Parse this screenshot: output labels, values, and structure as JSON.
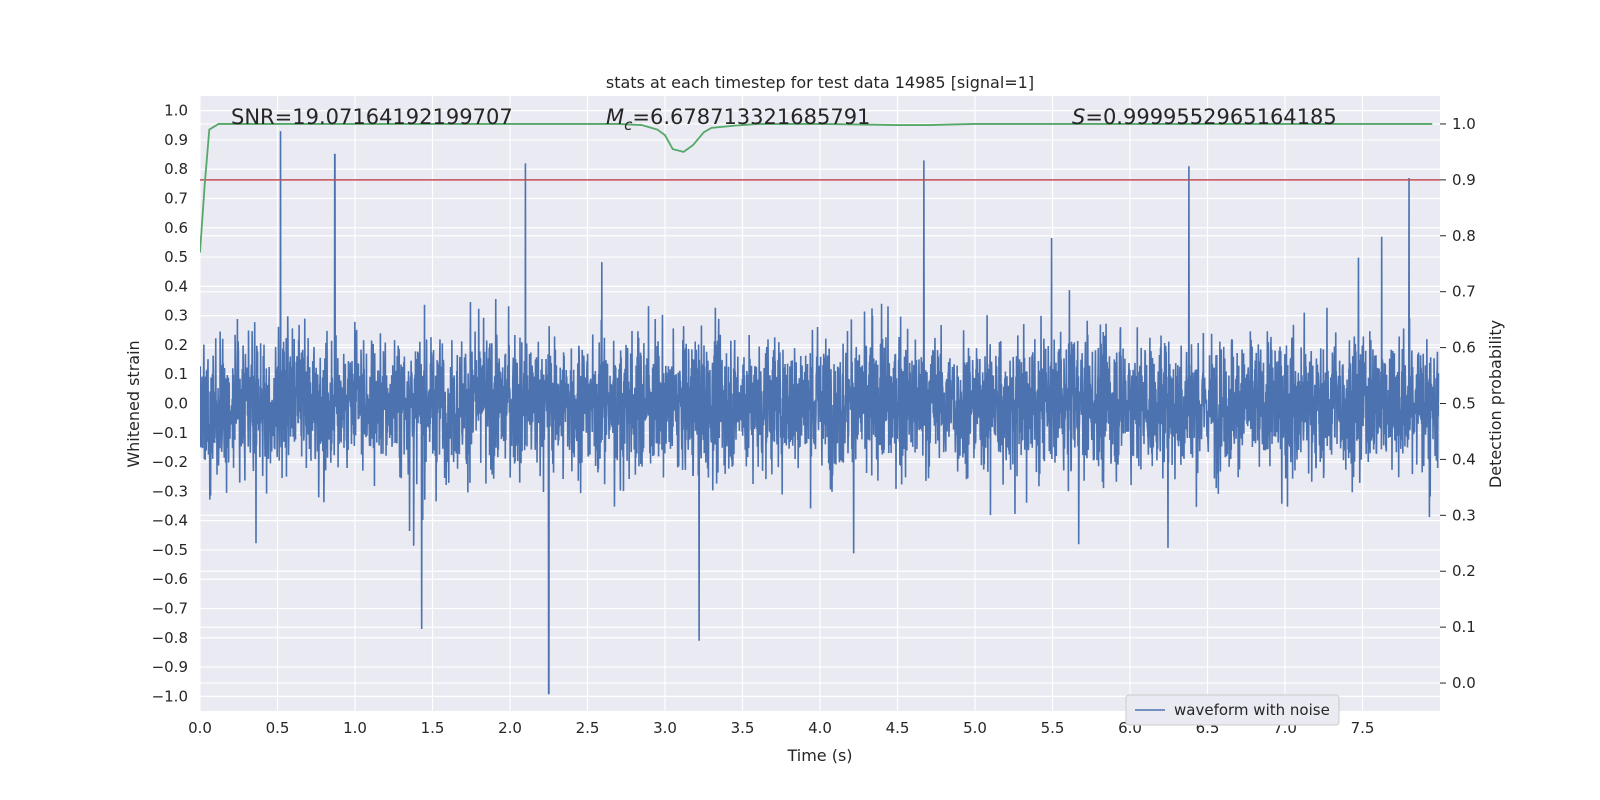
{
  "chart_data": {
    "type": "line",
    "title": "stats at each timestep for test data 14985 [signal=1]",
    "xlabel": "Time (s)",
    "ylabel": "Whitened strain",
    "y2label": "Detection probability",
    "xlim": [
      0.0,
      8.0
    ],
    "ylim": [
      -1.05,
      1.05
    ],
    "y2lim": [
      -0.05,
      1.05
    ],
    "xticks": [
      0.0,
      0.5,
      1.0,
      1.5,
      2.0,
      2.5,
      3.0,
      3.5,
      4.0,
      4.5,
      5.0,
      5.5,
      6.0,
      6.5,
      7.0,
      7.5
    ],
    "xtick_labels": [
      "0.0",
      "0.5",
      "1.0",
      "1.5",
      "2.0",
      "2.5",
      "3.0",
      "3.5",
      "4.0",
      "4.5",
      "5.0",
      "5.5",
      "6.0",
      "6.5",
      "7.0",
      "7.5"
    ],
    "yticks": [
      1.0,
      0.9,
      0.8,
      0.7,
      0.6,
      0.5,
      0.4,
      0.3,
      0.2,
      0.1,
      0.0,
      -0.1,
      -0.2,
      -0.3,
      -0.4,
      -0.5,
      -0.6,
      -0.7,
      -0.8,
      -0.9,
      -1.0
    ],
    "ytick_labels": [
      "1.0",
      "0.9",
      "0.8",
      "0.7",
      "0.6",
      "0.5",
      "0.4",
      "0.3",
      "0.2",
      "0.1",
      "0.0",
      "−0.1",
      "−0.2",
      "−0.3",
      "−0.4",
      "−0.5",
      "−0.6",
      "−0.7",
      "−0.8",
      "−0.9",
      "−1.0"
    ],
    "y2ticks": [
      1.0,
      0.9,
      0.8,
      0.7,
      0.6,
      0.5,
      0.4,
      0.3,
      0.2,
      0.1,
      0.0
    ],
    "y2tick_labels": [
      "1.0",
      "0.9",
      "0.8",
      "0.7",
      "0.6",
      "0.5",
      "0.4",
      "0.3",
      "0.2",
      "0.1",
      "0.0"
    ],
    "grid": true,
    "legend": {
      "position": "lower-right",
      "entries": [
        "waveform with noise"
      ]
    },
    "annotations": {
      "snr": "SNR=19.07164192199707",
      "mc_symbol": "M",
      "mc_sub": "c",
      "mc_value": "=6.678713321685791",
      "s_symbol": "S",
      "s_value": "=0.9999552965164185"
    },
    "threshold": {
      "axis": "y2",
      "value": 0.9,
      "color": "#c44e52"
    },
    "series": [
      {
        "name": "waveform with noise",
        "axis": "y",
        "color": "#4c72b0",
        "note": "dense noisy whitened strain, sampled ~8 s",
        "envelope_notable_peaks": [
          {
            "x": 0.52,
            "y": 0.93
          },
          {
            "x": 0.87,
            "y": 0.85
          },
          {
            "x": 2.1,
            "y": 0.82
          },
          {
            "x": 4.67,
            "y": 0.83
          },
          {
            "x": 6.38,
            "y": 0.81
          },
          {
            "x": 2.25,
            "y": -0.99
          },
          {
            "x": 1.43,
            "y": -0.77
          },
          {
            "x": 3.22,
            "y": -0.81
          },
          {
            "x": 7.8,
            "y": 0.77
          }
        ]
      },
      {
        "name": "detection probability",
        "axis": "y2",
        "color": "#55a868",
        "x": [
          0.0,
          0.03,
          0.06,
          0.12,
          0.5,
          1.0,
          2.0,
          2.7,
          2.85,
          2.95,
          3.0,
          3.05,
          3.12,
          3.18,
          3.25,
          3.3,
          3.45,
          3.6,
          4.0,
          4.5,
          4.7,
          5.0,
          6.0,
          7.0,
          7.95
        ],
        "values": [
          0.77,
          0.89,
          0.99,
          1.0,
          1.0,
          1.0,
          1.0,
          1.0,
          0.998,
          0.99,
          0.98,
          0.955,
          0.95,
          0.962,
          0.985,
          0.993,
          0.997,
          1.0,
          1.0,
          0.998,
          0.998,
          1.0,
          1.0,
          1.0,
          1.0
        ]
      }
    ]
  }
}
